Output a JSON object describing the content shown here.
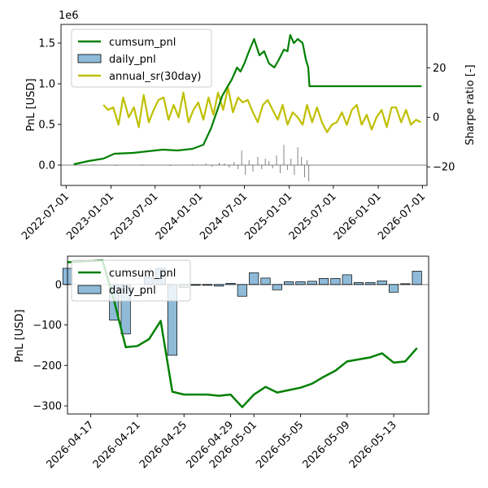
{
  "colors": {
    "cumsum": "#008000",
    "daily_fill": "#1f77b4",
    "daily_edge": "#000000",
    "sr": "#bfbf00",
    "zero_line": "#808080"
  },
  "chart_data": [
    {
      "type": "line",
      "ylabel": "PnL [USD]",
      "y2label": "Sharpe ratio [-]",
      "offset_text": "1e6",
      "ylim": [
        -0.25,
        1.73
      ],
      "y2lim": [
        -27.5,
        37.5
      ],
      "xlim": [
        "2022-06-10",
        "2026-07-20"
      ],
      "y_ticks": [
        0.0,
        0.5,
        1.0,
        1.5
      ],
      "y_tick_labels": [
        "0.0",
        "0.5",
        "1.0",
        "1.5"
      ],
      "y2_ticks": [
        -20,
        0,
        20
      ],
      "y2_tick_labels": [
        "−20",
        "0",
        "20"
      ],
      "x_ticks": [
        "2022-07-01",
        "2023-01-01",
        "2023-07-01",
        "2024-01-01",
        "2024-07-01",
        "2025-01-01",
        "2025-07-01",
        "2026-01-01",
        "2026-07-01"
      ],
      "x_tick_labels": [
        "2022-07-01",
        "2023-01-01",
        "2023-07-01",
        "2024-01-01",
        "2024-07-01",
        "2025-01-01",
        "2025-07-01",
        "2026-01-01",
        "2026-07-01"
      ],
      "legend": {
        "placement": "upper-left",
        "entries": [
          {
            "label": "cumsum_pnl",
            "kind": "line",
            "series": "cumsum"
          },
          {
            "label": "daily_pnl",
            "kind": "bar",
            "series": "daily"
          },
          {
            "label": "annual_sr(30day)",
            "kind": "line",
            "series": "sr"
          }
        ]
      },
      "series": [
        {
          "name": "cumsum_pnl",
          "key": "cumsum",
          "axis": "left",
          "x": [
            "2022-08-01",
            "2022-10-01",
            "2022-12-01",
            "2023-01-15",
            "2023-04-01",
            "2023-06-01",
            "2023-08-01",
            "2023-10-01",
            "2023-12-01",
            "2024-01-15",
            "2024-02-15",
            "2024-03-15",
            "2024-04-01",
            "2024-04-20",
            "2024-05-10",
            "2024-06-01",
            "2024-06-15",
            "2024-07-01",
            "2024-07-20",
            "2024-08-10",
            "2024-09-01",
            "2024-09-20",
            "2024-10-10",
            "2024-11-01",
            "2024-11-20",
            "2024-12-10",
            "2024-12-25",
            "2025-01-05",
            "2025-01-20",
            "2025-02-05",
            "2025-02-25",
            "2025-03-10",
            "2025-03-20",
            "2025-03-25",
            "2025-06-01",
            "2026-01-01",
            "2026-06-28"
          ],
          "y": [
            0.01,
            0.05,
            0.08,
            0.14,
            0.15,
            0.17,
            0.19,
            0.18,
            0.2,
            0.25,
            0.45,
            0.7,
            0.85,
            0.95,
            1.05,
            1.2,
            1.15,
            1.25,
            1.4,
            1.55,
            1.35,
            1.4,
            1.25,
            1.2,
            1.3,
            1.42,
            1.4,
            1.6,
            1.5,
            1.55,
            1.5,
            1.3,
            1.2,
            0.97,
            0.97,
            0.97,
            0.97
          ]
        },
        {
          "name": "annual_sr(30day)",
          "key": "sr",
          "axis": "right",
          "x": [
            "2022-12-01",
            "2022-12-20",
            "2023-01-10",
            "2023-02-01",
            "2023-02-20",
            "2023-03-15",
            "2023-04-05",
            "2023-04-25",
            "2023-05-15",
            "2023-06-05",
            "2023-06-25",
            "2023-07-15",
            "2023-08-05",
            "2023-08-25",
            "2023-09-15",
            "2023-10-05",
            "2023-10-25",
            "2023-11-15",
            "2023-12-05",
            "2023-12-25",
            "2024-01-15",
            "2024-02-05",
            "2024-02-25",
            "2024-03-15",
            "2024-04-05",
            "2024-04-25",
            "2024-05-15",
            "2024-06-05",
            "2024-06-25",
            "2024-07-15",
            "2024-08-05",
            "2024-08-25",
            "2024-09-15",
            "2024-10-05",
            "2024-10-25",
            "2024-11-15",
            "2024-12-05",
            "2024-12-25",
            "2025-01-15",
            "2025-02-05",
            "2025-02-25",
            "2025-03-15",
            "2025-04-05",
            "2025-04-25",
            "2025-05-15",
            "2025-06-05",
            "2025-06-25",
            "2025-07-15",
            "2025-08-05",
            "2025-08-25",
            "2025-09-15",
            "2025-10-05",
            "2025-10-25",
            "2025-11-15",
            "2025-12-05",
            "2025-12-25",
            "2026-01-15",
            "2026-02-05",
            "2026-02-25",
            "2026-03-15",
            "2026-04-05",
            "2026-04-25",
            "2026-05-15",
            "2026-06-05",
            "2026-06-25"
          ],
          "y": [
            5,
            3,
            4,
            -3,
            8,
            0,
            4,
            -4,
            9,
            -2,
            3,
            7,
            8,
            -1,
            5,
            0,
            10,
            -2,
            3,
            6,
            -1,
            8,
            1,
            10,
            3,
            12,
            2,
            8,
            6,
            7,
            2,
            -2,
            5,
            7,
            3,
            -1,
            5,
            -3,
            2,
            0,
            -3,
            5,
            -2,
            4,
            -2,
            -6,
            -3,
            -2,
            2,
            -3,
            3,
            5,
            -3,
            1,
            -5,
            0,
            3,
            -4,
            4,
            4,
            -2,
            3,
            -3,
            -1,
            -2
          ]
        },
        {
          "name": "daily_pnl",
          "key": "daily",
          "axis": "left",
          "x": [
            "2022-10-20",
            "2023-01-20",
            "2023-05-10",
            "2023-09-01",
            "2023-12-01",
            "2024-01-25",
            "2024-02-20",
            "2024-03-20",
            "2024-04-10",
            "2024-04-30",
            "2024-05-20",
            "2024-06-05",
            "2024-06-20",
            "2024-07-05",
            "2024-07-20",
            "2024-08-05",
            "2024-08-25",
            "2024-09-10",
            "2024-09-25",
            "2024-10-10",
            "2024-10-25",
            "2024-11-10",
            "2024-11-25",
            "2024-12-10",
            "2024-12-25",
            "2025-01-08",
            "2025-01-22",
            "2025-02-05",
            "2025-02-20",
            "2025-03-05",
            "2025-03-15",
            "2025-03-22"
          ],
          "y": [
            0.01,
            -0.01,
            0.01,
            -0.01,
            0.01,
            0.02,
            -0.02,
            0.03,
            0.02,
            -0.03,
            0.04,
            -0.05,
            0.18,
            -0.12,
            0.06,
            -0.08,
            0.1,
            -0.05,
            0.08,
            0.05,
            -0.04,
            0.12,
            -0.1,
            0.25,
            -0.06,
            0.08,
            -0.12,
            0.22,
            0.1,
            -0.15,
            0.06,
            -0.2
          ]
        }
      ]
    },
    {
      "type": "bar",
      "ylabel": "PnL [USD]",
      "ylim": [
        -320,
        70
      ],
      "xlim": [
        "2026-04-15",
        "2026-05-16"
      ],
      "y_ticks": [
        -300,
        -200,
        -100,
        0
      ],
      "y_tick_labels": [
        "−300",
        "−200",
        "−100",
        "0"
      ],
      "x_ticks": [
        "2026-04-17",
        "2026-04-21",
        "2026-04-25",
        "2026-04-29",
        "2026-05-01",
        "2026-05-05",
        "2026-05-09",
        "2026-05-13"
      ],
      "x_tick_labels": [
        "2026-04-17",
        "2026-04-21",
        "2026-04-25",
        "2026-04-29",
        "2026-05-01",
        "2026-05-05",
        "2026-05-09",
        "2026-05-13"
      ],
      "legend": {
        "placement": "upper-left",
        "entries": [
          {
            "label": "cumsum_pnl",
            "kind": "line",
            "series": "cumsum"
          },
          {
            "label": "daily_pnl",
            "kind": "bar",
            "series": "daily"
          }
        ]
      },
      "series": [
        {
          "name": "daily_pnl",
          "key": "daily",
          "kind": "bar",
          "x": [
            "2026-04-15",
            "2026-04-19",
            "2026-04-20",
            "2026-04-22",
            "2026-04-23",
            "2026-04-24",
            "2026-04-25",
            "2026-04-26",
            "2026-04-27",
            "2026-04-28",
            "2026-04-29",
            "2026-04-30",
            "2026-05-01",
            "2026-05-02",
            "2026-05-03",
            "2026-05-04",
            "2026-05-05",
            "2026-05-06",
            "2026-05-07",
            "2026-05-08",
            "2026-05-09",
            "2026-05-10",
            "2026-05-11",
            "2026-05-12",
            "2026-05-13",
            "2026-05-14",
            "2026-05-15"
          ],
          "y": [
            40,
            -88,
            -122,
            17,
            40,
            -175,
            -7,
            -2,
            -2,
            -4,
            3,
            -29,
            29,
            16,
            -13,
            7,
            7,
            8,
            15,
            15,
            24,
            5,
            5,
            9,
            -19,
            2,
            33
          ]
        },
        {
          "name": "cumsum_pnl",
          "key": "cumsum",
          "kind": "line",
          "x": [
            "2026-04-15",
            "2026-04-18",
            "2026-04-19",
            "2026-04-20",
            "2026-04-21",
            "2026-04-22",
            "2026-04-23",
            "2026-04-24",
            "2026-04-25",
            "2026-04-26",
            "2026-04-27",
            "2026-04-28",
            "2026-04-29",
            "2026-04-30",
            "2026-05-01",
            "2026-05-02",
            "2026-05-03",
            "2026-05-04",
            "2026-05-05",
            "2026-05-06",
            "2026-05-07",
            "2026-05-08",
            "2026-05-09",
            "2026-05-10",
            "2026-05-11",
            "2026-05-12",
            "2026-05-13",
            "2026-05-14",
            "2026-05-15"
          ],
          "y": [
            55,
            60,
            -40,
            -155,
            -152,
            -135,
            -90,
            -265,
            -272,
            -272,
            -272,
            -275,
            -272,
            -303,
            -272,
            -253,
            -267,
            -261,
            -255,
            -245,
            -228,
            -213,
            -190,
            -185,
            -180,
            -170,
            -193,
            -190,
            -157
          ]
        }
      ]
    }
  ]
}
